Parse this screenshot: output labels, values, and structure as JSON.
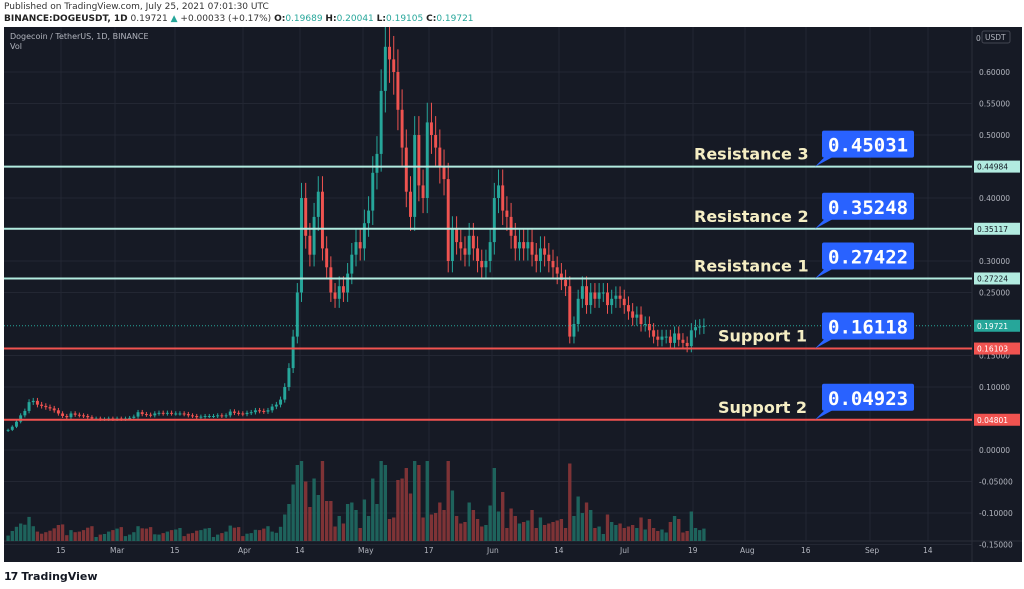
{
  "header": {
    "published": "Published on TradingView.com, July 25, 2021 07:01:30 UTC",
    "symbol": "BINANCE:DOGEUSDT, 1D",
    "last": "0.19721",
    "change_arrow": "▲",
    "change": "+0.00033 (+0.17%)",
    "o_label": "O:",
    "o": "0.19689",
    "h_label": "H:",
    "h": "0.20041",
    "l_label": "L:",
    "l": "0.19105",
    "c_label": "C:",
    "c": "0.19721"
  },
  "legend": {
    "title": "Dogecoin / TetherUS, 1D, BINANCE",
    "volume": "Vol"
  },
  "footer": {
    "logo": "17",
    "brand": "TradingView"
  },
  "colors": {
    "up": "#26a69a",
    "down": "#ef5350",
    "resistance": "#b2ebe0",
    "support": "#f05350",
    "callout": "#2962ff",
    "label": "#f5eec4",
    "bg": "#161a25",
    "grid": "#232733"
  },
  "chart_data": {
    "type": "candlestick",
    "title": "Dogecoin / TetherUS, 1D, BINANCE",
    "currency": "USDT",
    "ylim": [
      -0.16,
      0.64
    ],
    "yticks": [
      "0.60000",
      "0.55000",
      "0.50000",
      "0.40000",
      "0.30000",
      "0.25000",
      "0.15000",
      "0.10000",
      "0.00000",
      "-0.05000",
      "-0.10000",
      "-0.15000"
    ],
    "xticks": [
      "15",
      "Mar",
      "15",
      "Apr",
      "14",
      "May",
      "17",
      "Jun",
      "14",
      "Jul",
      "19",
      "Aug",
      "16",
      "Sep",
      "14"
    ],
    "price_tags": [
      {
        "value": "0.44984",
        "type": "resistance"
      },
      {
        "value": "0.35117",
        "type": "resistance"
      },
      {
        "value": "0.27224",
        "type": "resistance"
      },
      {
        "value": "0.19721",
        "type": "last"
      },
      {
        "value": "0.16103",
        "type": "support"
      },
      {
        "value": "0.04801",
        "type": "support"
      }
    ],
    "levels": [
      {
        "name": "Resistance 3",
        "value": 0.45031,
        "line": 0.44984,
        "kind": "resistance"
      },
      {
        "name": "Resistance 2",
        "value": 0.35248,
        "line": 0.35117,
        "kind": "resistance"
      },
      {
        "name": "Resistance 1",
        "value": 0.27422,
        "line": 0.27224,
        "kind": "resistance"
      },
      {
        "name": "Support 1",
        "value": 0.16118,
        "line": 0.16103,
        "kind": "support"
      },
      {
        "name": "Support 2",
        "value": 0.04923,
        "line": 0.04801,
        "kind": "support"
      }
    ],
    "annotations": [
      {
        "label": "Resistance 3",
        "value": "0.45031"
      },
      {
        "label": "Resistance 2",
        "value": "0.35248"
      },
      {
        "label": "Resistance 1",
        "value": "0.27422"
      },
      {
        "label": "Support 1",
        "value": "0.16118"
      },
      {
        "label": "Support 2",
        "value": "0.04923"
      }
    ],
    "closes": [
      0.032,
      0.037,
      0.045,
      0.055,
      0.062,
      0.076,
      0.078,
      0.072,
      0.07,
      0.068,
      0.066,
      0.063,
      0.058,
      0.054,
      0.052,
      0.058,
      0.056,
      0.055,
      0.054,
      0.052,
      0.05,
      0.05,
      0.049,
      0.049,
      0.05,
      0.049,
      0.05,
      0.049,
      0.05,
      0.051,
      0.053,
      0.06,
      0.057,
      0.056,
      0.055,
      0.058,
      0.059,
      0.058,
      0.059,
      0.058,
      0.058,
      0.058,
      0.057,
      0.055,
      0.054,
      0.052,
      0.053,
      0.054,
      0.054,
      0.054,
      0.055,
      0.054,
      0.055,
      0.061,
      0.059,
      0.058,
      0.057,
      0.059,
      0.06,
      0.063,
      0.062,
      0.061,
      0.063,
      0.069,
      0.072,
      0.08,
      0.1,
      0.13,
      0.18,
      0.25,
      0.4,
      0.34,
      0.31,
      0.37,
      0.41,
      0.32,
      0.29,
      0.25,
      0.24,
      0.26,
      0.25,
      0.28,
      0.31,
      0.33,
      0.32,
      0.36,
      0.38,
      0.44,
      0.47,
      0.57,
      0.64,
      0.62,
      0.6,
      0.54,
      0.48,
      0.41,
      0.37,
      0.5,
      0.42,
      0.4,
      0.52,
      0.5,
      0.48,
      0.45,
      0.43,
      0.3,
      0.35,
      0.33,
      0.32,
      0.31,
      0.34,
      0.32,
      0.3,
      0.29,
      0.3,
      0.33,
      0.4,
      0.42,
      0.38,
      0.37,
      0.34,
      0.32,
      0.33,
      0.32,
      0.33,
      0.31,
      0.3,
      0.32,
      0.31,
      0.3,
      0.29,
      0.28,
      0.27,
      0.26,
      0.18,
      0.2,
      0.24,
      0.26,
      0.23,
      0.25,
      0.24,
      0.25,
      0.25,
      0.23,
      0.24,
      0.245,
      0.24,
      0.23,
      0.22,
      0.21,
      0.215,
      0.2,
      0.2,
      0.19,
      0.18,
      0.175,
      0.18,
      0.18,
      0.17,
      0.185,
      0.175,
      0.17,
      0.165,
      0.19,
      0.195,
      0.196,
      0.197
    ]
  }
}
